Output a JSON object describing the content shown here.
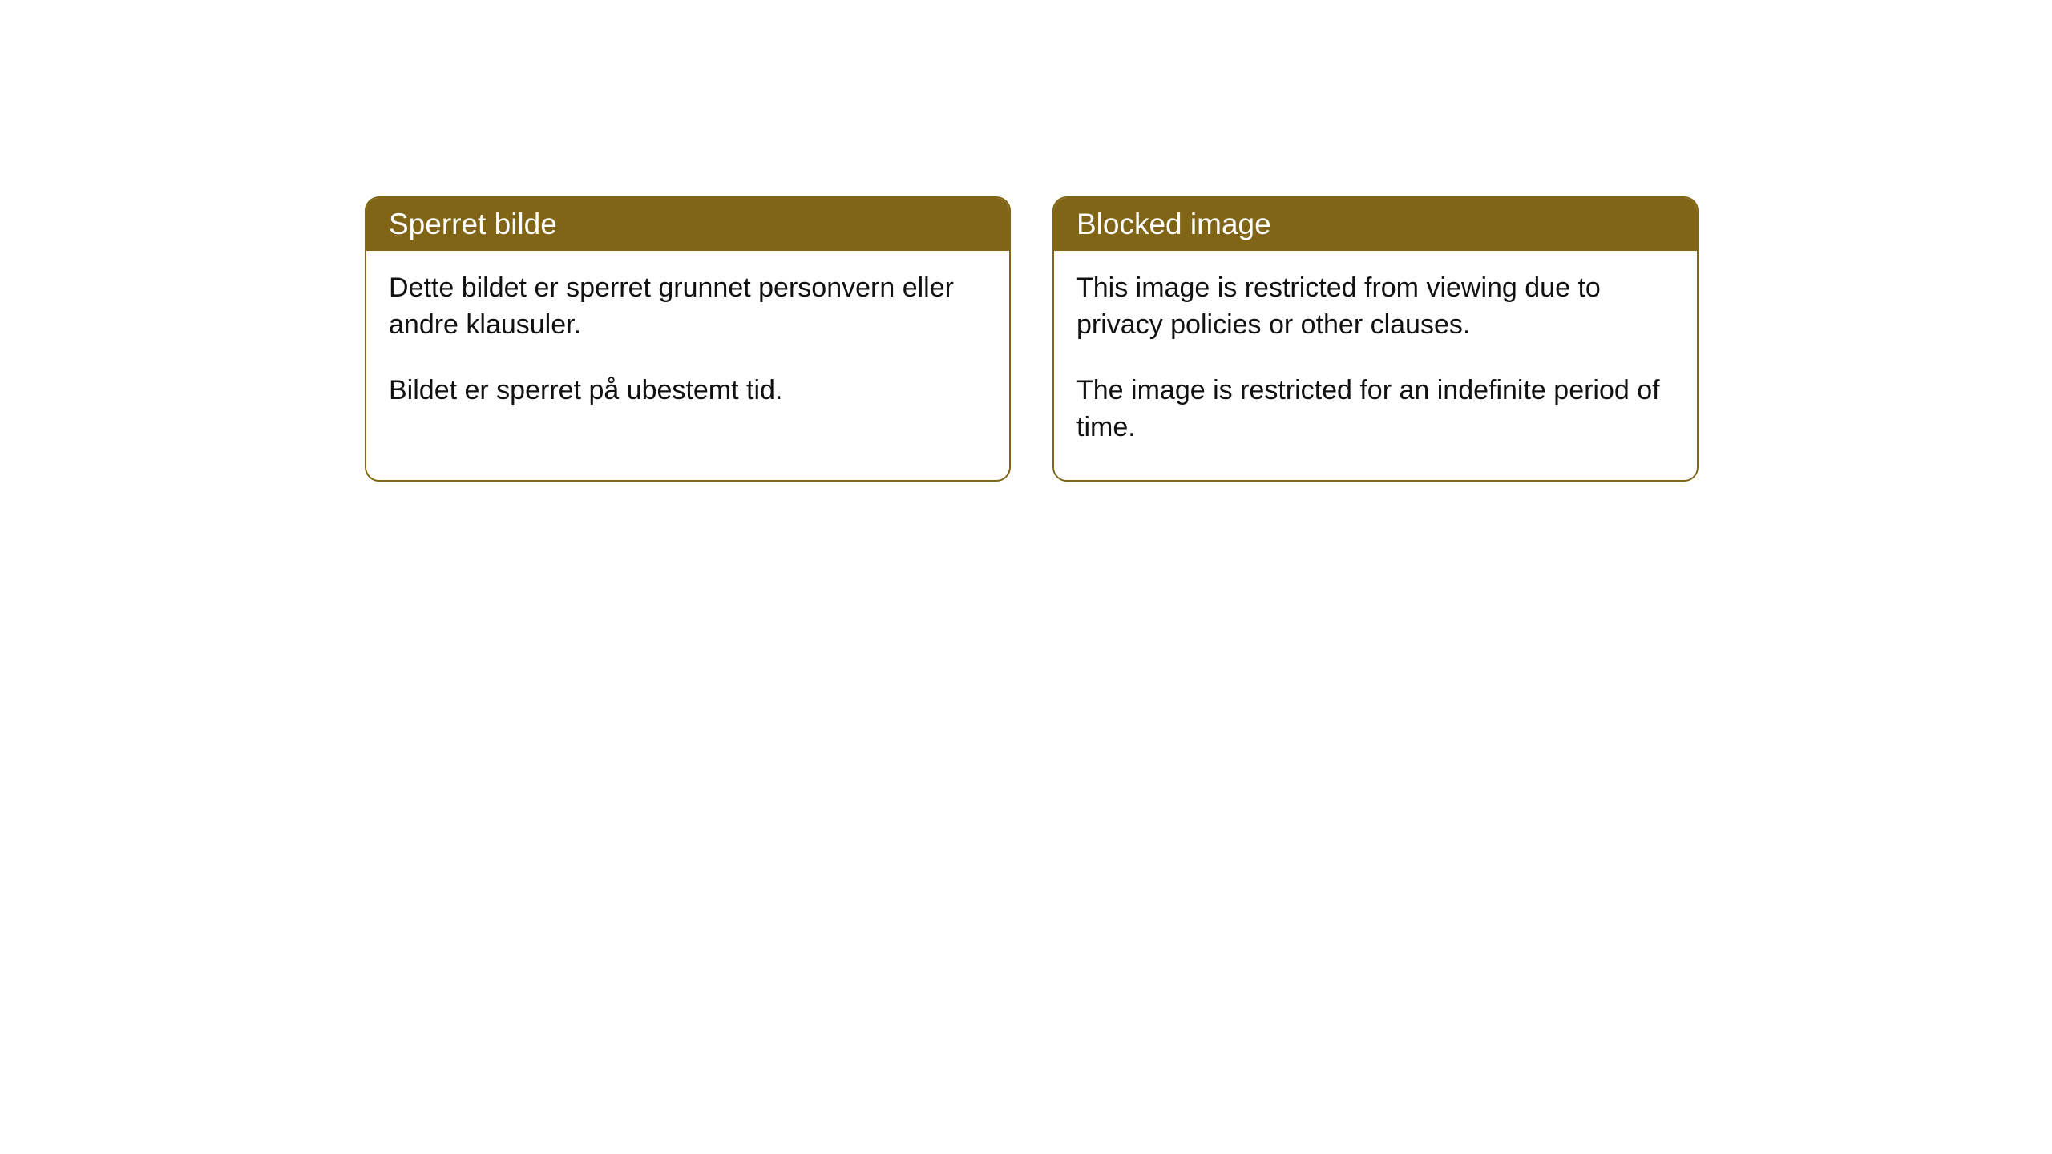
{
  "styles": {
    "header_bg_color": "#806517",
    "header_text_color": "#ffffff",
    "border_color": "#806517",
    "body_bg_color": "#ffffff",
    "body_text_color": "#111111",
    "border_radius": "18px",
    "header_fontsize": 37,
    "body_fontsize": 34
  },
  "cards": [
    {
      "title": "Sperret bilde",
      "paragraph1": "Dette bildet er sperret grunnet personvern eller andre klausuler.",
      "paragraph2": "Bildet er sperret på ubestemt tid."
    },
    {
      "title": "Blocked image",
      "paragraph1": "This image is restricted from viewing due to privacy policies or other clauses.",
      "paragraph2": "The image is restricted for an indefinite period of time."
    }
  ]
}
